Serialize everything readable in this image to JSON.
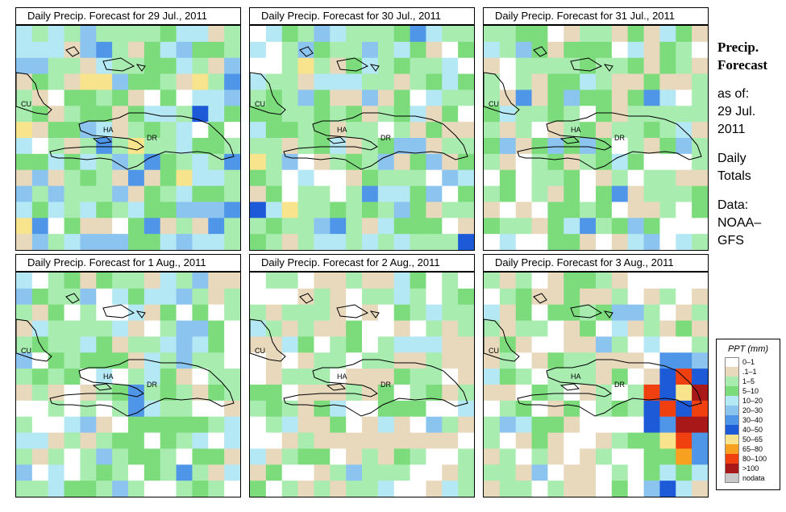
{
  "panels": [
    {
      "title": "Daily Precip. Forecast for  29 Jul., 2011",
      "date": "29 Jul., 2011",
      "intensity": "moderate"
    },
    {
      "title": "Daily Precip. Forecast for  30 Jul., 2011",
      "date": "30 Jul., 2011",
      "intensity": "moderate-light"
    },
    {
      "title": "Daily Precip. Forecast for  31 Jul., 2011",
      "date": "31 Jul., 2011",
      "intensity": "light"
    },
    {
      "title": "Daily Precip. Forecast for  1 Aug., 2011",
      "date": "1 Aug., 2011",
      "intensity": "light"
    },
    {
      "title": "Daily Precip. Forecast for  2 Aug., 2011",
      "date": "2 Aug., 2011",
      "intensity": "very-light"
    },
    {
      "title": "Daily Precip. Forecast for  3 Aug., 2011",
      "date": "3 Aug., 2011",
      "intensity": "storm-east"
    }
  ],
  "map_labels": {
    "cuba": "CU",
    "haiti": "HA",
    "dominican_republic": "DR"
  },
  "side": {
    "heading_line1": "Precip.",
    "heading_line2": "Forecast",
    "asof_label": "as of:",
    "asof_date_line1": "29 Jul.",
    "asof_date_line2": "2011",
    "totals_line1": "Daily",
    "totals_line2": "Totals",
    "source_line1": "Data:",
    "source_line2": "NOAA–",
    "source_line3": "GFS"
  },
  "legend": {
    "title": "PPT (mm)",
    "entries": [
      {
        "label": "0–1",
        "color": "#ffffff"
      },
      {
        "label": ".1–1",
        "color": "#e8d8bc"
      },
      {
        "label": "1–5",
        "color": "#a8ecb0"
      },
      {
        "label": "5–10",
        "color": "#7cdc7c"
      },
      {
        "label": "10–20",
        "color": "#b4e8f4"
      },
      {
        "label": "20–30",
        "color": "#8cc4f0"
      },
      {
        "label": "30–40",
        "color": "#5096e8"
      },
      {
        "label": "40–50",
        "color": "#1c5ad8"
      },
      {
        "label": "50–65",
        "color": "#f8e48c"
      },
      {
        "label": "65–80",
        "color": "#f8a020"
      },
      {
        "label": "80–100",
        "color": "#f04010"
      },
      {
        "label": ">100",
        "color": "#a81818"
      },
      {
        "label": "nodata",
        "color": "#c8c8c8"
      }
    ]
  }
}
